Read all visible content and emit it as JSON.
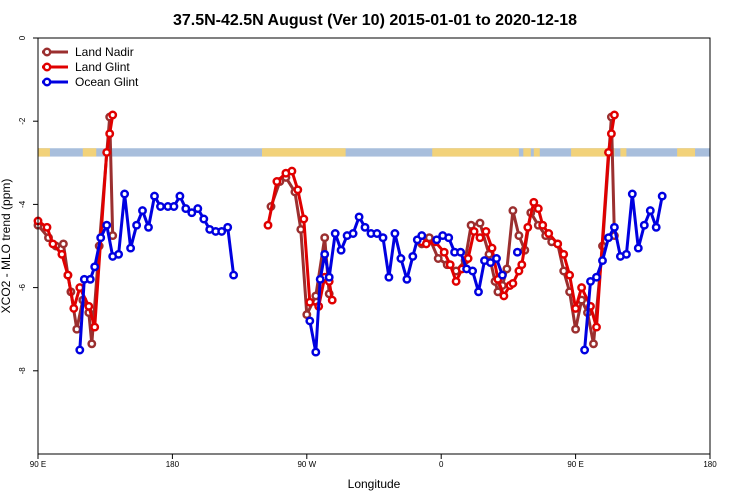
{
  "chart_data": {
    "type": "line",
    "title": "37.5N-42.5N August (Ver 10)   2015-01-01 to 2020-12-18",
    "xlabel": "Longitude",
    "ylabel": "XCO2 - MLO trend (ppm)",
    "x_ticks": [
      {
        "value": 90,
        "label": "90 E"
      },
      {
        "value": 180,
        "label": "180"
      },
      {
        "value": 270,
        "label": "90 W"
      },
      {
        "value": 360,
        "label": "0"
      },
      {
        "value": 450,
        "label": "90 E"
      },
      {
        "value": 540,
        "label": "180"
      }
    ],
    "y_ticks": [
      {
        "value": 0,
        "label": "0"
      },
      {
        "value": -2,
        "label": "-2"
      },
      {
        "value": -4,
        "label": "-4"
      },
      {
        "value": -6,
        "label": "-6"
      },
      {
        "value": -8,
        "label": "-8"
      }
    ],
    "xlim": [
      90,
      540
    ],
    "ylim": [
      -10,
      0
    ],
    "grid": false,
    "legend_position": "top-left",
    "land_ocean_band": {
      "y_range": [
        -2.85,
        -2.65
      ],
      "ocean_color": "#a8bedc",
      "land_color": "#f2d27a",
      "land_segments": [
        [
          90,
          98
        ],
        [
          120,
          129
        ],
        [
          240,
          296
        ],
        [
          354,
          412
        ],
        [
          415,
          420
        ],
        [
          422,
          426
        ],
        [
          447,
          476
        ],
        [
          480,
          484
        ],
        [
          518,
          530
        ]
      ]
    },
    "series": [
      {
        "name": "Land Nadir",
        "color": "#9b2f2f",
        "segments": [
          [
            [
              90,
              -4.5
            ],
            [
              97,
              -4.8
            ],
            [
              102,
              -5.0
            ],
            [
              107,
              -4.95
            ],
            [
              110,
              -5.7
            ],
            [
              112,
              -6.1
            ],
            [
              116,
              -7.0
            ],
            [
              120,
              -6.3
            ],
            [
              124,
              -6.6
            ],
            [
              126,
              -7.35
            ],
            [
              131,
              -5.0
            ],
            [
              138,
              -1.9
            ],
            [
              140,
              -4.75
            ]
          ],
          [
            [
              246,
              -4.05
            ],
            [
              252,
              -3.45
            ],
            [
              256,
              -3.35
            ],
            [
              262,
              -3.7
            ],
            [
              266,
              -4.6
            ],
            [
              270,
              -6.65
            ],
            [
              276,
              -6.2
            ],
            [
              282,
              -4.8
            ],
            [
              285,
              -6.15
            ]
          ],
          [
            [
              347,
              -4.95
            ],
            [
              352,
              -4.8
            ],
            [
              358,
              -5.3
            ],
            [
              364,
              -5.45
            ],
            [
              370,
              -5.6
            ],
            [
              376,
              -5.35
            ],
            [
              380,
              -4.5
            ],
            [
              386,
              -4.45
            ],
            [
              392,
              -5.2
            ],
            [
              396,
              -5.85
            ],
            [
              398,
              -6.1
            ],
            [
              401,
              -5.95
            ],
            [
              404,
              -5.55
            ],
            [
              408,
              -4.15
            ],
            [
              412,
              -4.75
            ],
            [
              416,
              -5.1
            ],
            [
              420,
              -4.2
            ],
            [
              425,
              -4.5
            ],
            [
              430,
              -4.75
            ],
            [
              434,
              -4.9
            ],
            [
              438,
              -4.95
            ],
            [
              442,
              -5.6
            ],
            [
              446,
              -6.1
            ],
            [
              450,
              -7.0
            ],
            [
              454,
              -6.3
            ],
            [
              458,
              -6.6
            ],
            [
              462,
              -7.35
            ],
            [
              468,
              -5.0
            ],
            [
              474,
              -1.9
            ],
            [
              476,
              -4.75
            ]
          ]
        ]
      },
      {
        "name": "Land Glint",
        "color": "#e00000",
        "segments": [
          [
            [
              90,
              -4.4
            ],
            [
              96,
              -4.55
            ],
            [
              100,
              -4.95
            ],
            [
              106,
              -5.2
            ],
            [
              110,
              -5.7
            ],
            [
              114,
              -6.5
            ],
            [
              118,
              -6.0
            ],
            [
              124,
              -6.45
            ],
            [
              128,
              -6.95
            ],
            [
              136,
              -2.75
            ],
            [
              138,
              -2.3
            ],
            [
              140,
              -1.85
            ]
          ],
          [
            [
              244,
              -4.5
            ],
            [
              250,
              -3.45
            ],
            [
              256,
              -3.25
            ],
            [
              260,
              -3.2
            ],
            [
              264,
              -3.65
            ],
            [
              268,
              -4.35
            ],
            [
              272,
              -6.35
            ],
            [
              278,
              -6.45
            ],
            [
              282,
              -5.75
            ],
            [
              285,
              -5.85
            ],
            [
              287,
              -6.3
            ]
          ],
          [
            [
              347,
              -4.9
            ],
            [
              350,
              -4.95
            ],
            [
              356,
              -4.9
            ],
            [
              362,
              -5.15
            ],
            [
              366,
              -5.45
            ],
            [
              370,
              -5.85
            ],
            [
              374,
              -5.55
            ],
            [
              378,
              -5.3
            ],
            [
              382,
              -4.65
            ],
            [
              386,
              -4.8
            ],
            [
              390,
              -4.65
            ],
            [
              394,
              -5.05
            ],
            [
              398,
              -5.8
            ],
            [
              402,
              -6.2
            ],
            [
              406,
              -5.95
            ],
            [
              408,
              -5.9
            ],
            [
              412,
              -5.6
            ],
            [
              414,
              -5.45
            ],
            [
              418,
              -4.55
            ],
            [
              422,
              -3.95
            ],
            [
              425,
              -4.1
            ],
            [
              428,
              -4.5
            ],
            [
              432,
              -4.7
            ],
            [
              438,
              -4.95
            ],
            [
              442,
              -5.2
            ],
            [
              446,
              -5.7
            ],
            [
              450,
              -6.5
            ],
            [
              454,
              -6.0
            ],
            [
              460,
              -6.45
            ],
            [
              464,
              -6.95
            ],
            [
              472,
              -2.75
            ],
            [
              474,
              -2.3
            ],
            [
              476,
              -1.85
            ]
          ]
        ]
      },
      {
        "name": "Ocean Glint",
        "color": "#0000e0",
        "segments": [
          [
            [
              118,
              -7.5
            ],
            [
              121,
              -5.8
            ],
            [
              125,
              -5.8
            ],
            [
              128,
              -5.5
            ],
            [
              132,
              -4.8
            ],
            [
              136,
              -4.5
            ],
            [
              140,
              -5.25
            ],
            [
              144,
              -5.2
            ],
            [
              148,
              -3.75
            ],
            [
              152,
              -5.05
            ],
            [
              156,
              -4.5
            ],
            [
              160,
              -4.15
            ],
            [
              164,
              -4.55
            ],
            [
              168,
              -3.8
            ],
            [
              172,
              -4.05
            ],
            [
              177,
              -4.05
            ],
            [
              181,
              -4.05
            ],
            [
              185,
              -3.8
            ],
            [
              189,
              -4.1
            ],
            [
              193,
              -4.2
            ],
            [
              197,
              -4.1
            ],
            [
              201,
              -4.35
            ],
            [
              205,
              -4.6
            ],
            [
              209,
              -4.65
            ],
            [
              213,
              -4.65
            ],
            [
              217,
              -4.55
            ],
            [
              221,
              -5.7
            ]
          ],
          [
            [
              272,
              -6.8
            ],
            [
              276,
              -7.55
            ],
            [
              279,
              -5.8
            ],
            [
              282,
              -5.2
            ],
            [
              285,
              -5.75
            ],
            [
              289,
              -4.7
            ],
            [
              293,
              -5.1
            ],
            [
              297,
              -4.75
            ],
            [
              301,
              -4.7
            ],
            [
              305,
              -4.3
            ],
            [
              309,
              -4.55
            ],
            [
              313,
              -4.7
            ],
            [
              317,
              -4.7
            ],
            [
              321,
              -4.8
            ],
            [
              325,
              -5.75
            ],
            [
              329,
              -4.7
            ],
            [
              333,
              -5.3
            ],
            [
              337,
              -5.8
            ],
            [
              341,
              -5.25
            ],
            [
              344,
              -4.85
            ],
            [
              347,
              -4.75
            ]
          ],
          [
            [
              357,
              -4.85
            ],
            [
              361,
              -4.75
            ],
            [
              365,
              -4.8
            ],
            [
              369,
              -5.15
            ],
            [
              373,
              -5.15
            ],
            [
              377,
              -5.55
            ],
            [
              381,
              -5.6
            ],
            [
              385,
              -6.1
            ],
            [
              389,
              -5.35
            ],
            [
              393,
              -5.4
            ],
            [
              397,
              -5.3
            ],
            [
              401,
              -5.7
            ]
          ],
          [
            [
              411,
              -5.15
            ]
          ],
          [
            [
              456,
              -7.5
            ],
            [
              460,
              -5.85
            ],
            [
              464,
              -5.75
            ],
            [
              468,
              -5.35
            ],
            [
              472,
              -4.8
            ],
            [
              476,
              -4.55
            ],
            [
              480,
              -5.25
            ],
            [
              484,
              -5.2
            ],
            [
              488,
              -3.75
            ],
            [
              492,
              -5.05
            ],
            [
              496,
              -4.5
            ],
            [
              500,
              -4.15
            ],
            [
              504,
              -4.55
            ],
            [
              508,
              -3.8
            ]
          ]
        ]
      }
    ]
  }
}
